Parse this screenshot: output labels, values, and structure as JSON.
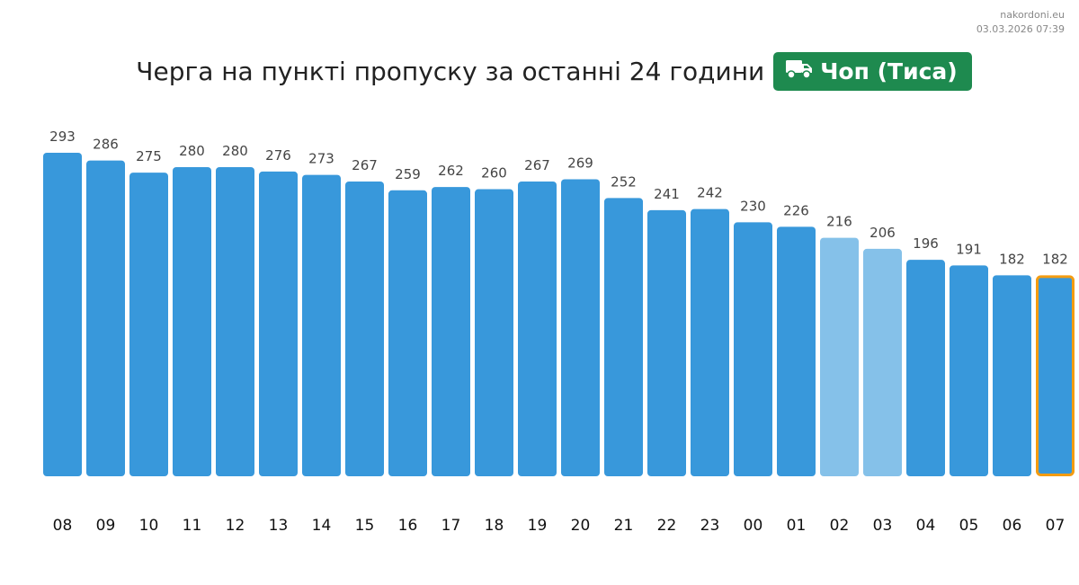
{
  "source": {
    "site": "nakordoni.eu",
    "timestamp": "03.03.2026 07:39"
  },
  "header": {
    "title": "Черга на пункті пропуску за останні 24 години",
    "badge_label": "Чоп (Тиса)",
    "badge_icon": "truck-icon",
    "badge_color": "#1e8a4f"
  },
  "chart_data": {
    "type": "bar",
    "categories": [
      "08",
      "09",
      "10",
      "11",
      "12",
      "13",
      "14",
      "15",
      "16",
      "17",
      "18",
      "19",
      "20",
      "21",
      "22",
      "23",
      "00",
      "01",
      "02",
      "03",
      "04",
      "05",
      "06",
      "07"
    ],
    "values": [
      293,
      286,
      275,
      280,
      280,
      276,
      273,
      267,
      259,
      262,
      260,
      267,
      269,
      252,
      241,
      242,
      230,
      226,
      216,
      206,
      196,
      191,
      182,
      182
    ],
    "highlighted_categories": [
      "02",
      "03"
    ],
    "current_category": "07",
    "colors": {
      "bar": "#3898db",
      "highlighted_bar": "#85c1e9",
      "current_outline": "#f39c12"
    },
    "title": "",
    "xlabel": "",
    "ylabel": "",
    "ylim": [
      0,
      293
    ],
    "grid": false
  }
}
